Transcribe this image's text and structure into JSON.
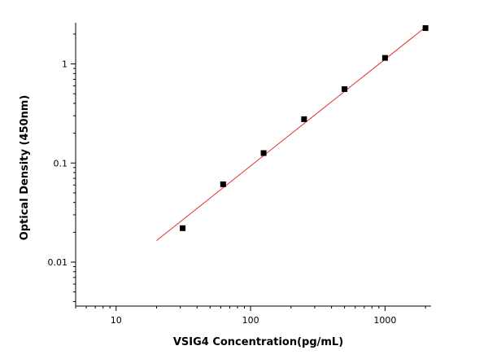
{
  "chart_data": {
    "type": "scatter",
    "title": "",
    "xlabel": "VSIG4 Concentration(pg/mL)",
    "ylabel": "Optical Density (450nm)",
    "x_scale": "log",
    "y_scale": "log",
    "xlim": [
      5,
      2200
    ],
    "ylim": [
      0.0036,
      2.6
    ],
    "x_ticks": [
      10,
      100,
      1000
    ],
    "x_tick_labels": [
      "10",
      "100",
      "1000"
    ],
    "y_ticks": [
      0.01,
      0.1,
      1
    ],
    "y_tick_labels": [
      "0.01",
      "0.1",
      "1"
    ],
    "grid": false,
    "legend": "none",
    "series": [
      {
        "kind": "points",
        "x": [
          31.25,
          62.5,
          125,
          250,
          500,
          1000,
          2000
        ],
        "y": [
          0.022,
          0.061,
          0.126,
          0.277,
          0.557,
          1.15,
          2.3
        ],
        "color": "#000000"
      },
      {
        "kind": "fit-line",
        "x": [
          20,
          2000
        ],
        "y": [
          0.0165,
          2.35
        ],
        "color": "#e53030"
      }
    ]
  }
}
